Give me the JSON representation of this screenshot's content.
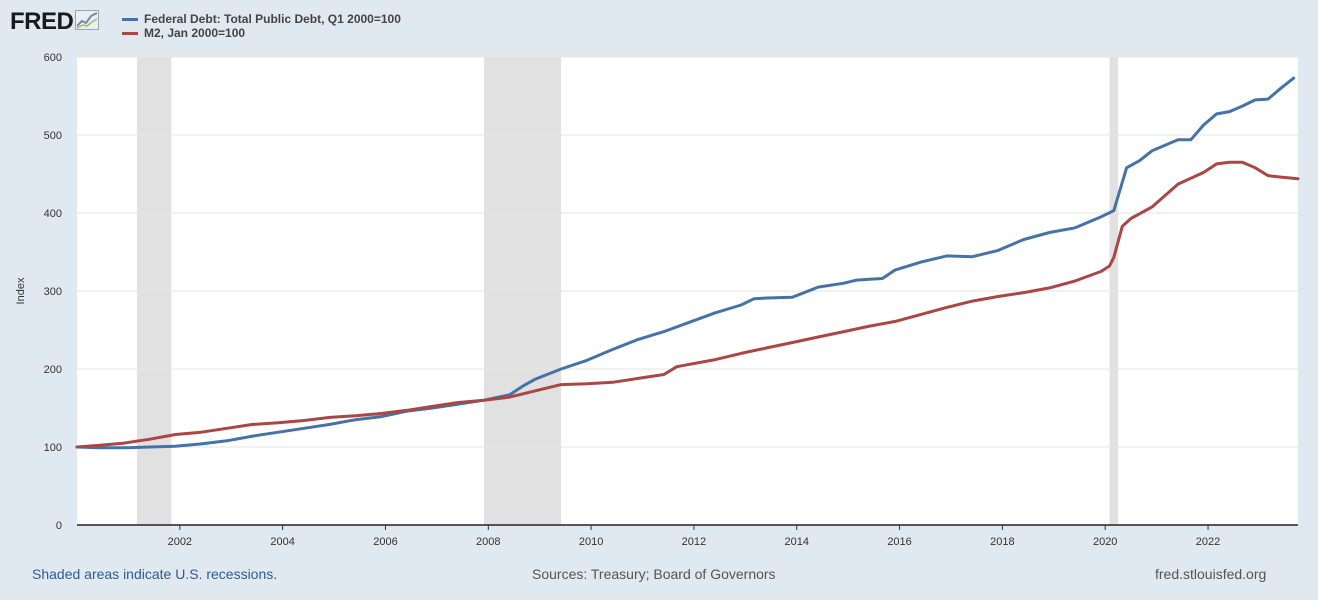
{
  "brand": {
    "logo_text": "FRED",
    "logo_icon": "trend-graph-icon"
  },
  "chart_data": {
    "type": "line",
    "ylabel": "Index",
    "xlabel": "",
    "ylim": [
      0,
      600
    ],
    "xlim": [
      "2000-01-01",
      "2023-10-01"
    ],
    "y_ticks": [
      0,
      100,
      200,
      300,
      400,
      500,
      600
    ],
    "x_ticks": [
      "2002",
      "2004",
      "2006",
      "2008",
      "2010",
      "2012",
      "2014",
      "2016",
      "2018",
      "2020",
      "2022"
    ],
    "grid": "horizontal",
    "legend_position": "top-left",
    "recessions": [
      {
        "start": "2001-03-01",
        "end": "2001-11-01"
      },
      {
        "start": "2007-12-01",
        "end": "2009-06-01"
      },
      {
        "start": "2020-02-01",
        "end": "2020-04-01"
      }
    ],
    "series": [
      {
        "name": "Federal Debt: Total Public Debt, Q1 2000=100",
        "color": "#4572a7",
        "points": [
          [
            "2000-01-01",
            100
          ],
          [
            "2000-06-01",
            99
          ],
          [
            "2000-12-01",
            99
          ],
          [
            "2001-06-01",
            100
          ],
          [
            "2001-12-01",
            101
          ],
          [
            "2002-06-01",
            104
          ],
          [
            "2002-12-01",
            108
          ],
          [
            "2003-06-01",
            114
          ],
          [
            "2003-12-01",
            119
          ],
          [
            "2004-06-01",
            124
          ],
          [
            "2004-12-01",
            129
          ],
          [
            "2005-06-01",
            135
          ],
          [
            "2005-12-01",
            139
          ],
          [
            "2006-06-01",
            146
          ],
          [
            "2006-12-01",
            150
          ],
          [
            "2007-06-01",
            155
          ],
          [
            "2007-12-01",
            160
          ],
          [
            "2008-06-01",
            167
          ],
          [
            "2008-09-01",
            178
          ],
          [
            "2008-12-01",
            187
          ],
          [
            "2009-06-01",
            200
          ],
          [
            "2009-12-01",
            211
          ],
          [
            "2010-06-01",
            225
          ],
          [
            "2010-12-01",
            238
          ],
          [
            "2011-06-01",
            248
          ],
          [
            "2011-12-01",
            260
          ],
          [
            "2012-06-01",
            272
          ],
          [
            "2012-12-01",
            282
          ],
          [
            "2013-03-01",
            290
          ],
          [
            "2013-06-01",
            291
          ],
          [
            "2013-12-01",
            292
          ],
          [
            "2014-06-01",
            305
          ],
          [
            "2014-12-01",
            310
          ],
          [
            "2015-03-01",
            314
          ],
          [
            "2015-06-01",
            315
          ],
          [
            "2015-09-01",
            316
          ],
          [
            "2015-12-01",
            327
          ],
          [
            "2016-06-01",
            337
          ],
          [
            "2016-12-01",
            345
          ],
          [
            "2017-06-01",
            344
          ],
          [
            "2017-12-01",
            352
          ],
          [
            "2018-06-01",
            366
          ],
          [
            "2018-12-01",
            375
          ],
          [
            "2019-06-01",
            381
          ],
          [
            "2019-12-01",
            395
          ],
          [
            "2020-03-01",
            403
          ],
          [
            "2020-06-01",
            458
          ],
          [
            "2020-09-01",
            467
          ],
          [
            "2020-12-01",
            480
          ],
          [
            "2021-06-01",
            494
          ],
          [
            "2021-09-01",
            494
          ],
          [
            "2021-12-01",
            513
          ],
          [
            "2022-03-01",
            527
          ],
          [
            "2022-06-01",
            530
          ],
          [
            "2022-09-01",
            537
          ],
          [
            "2022-12-01",
            545
          ],
          [
            "2023-03-01",
            546
          ],
          [
            "2023-06-01",
            560
          ],
          [
            "2023-09-01",
            573
          ]
        ]
      },
      {
        "name": "M2, Jan 2000=100",
        "color": "#aa4643",
        "points": [
          [
            "2000-01-01",
            100
          ],
          [
            "2000-06-01",
            102
          ],
          [
            "2000-12-01",
            105
          ],
          [
            "2001-06-01",
            110
          ],
          [
            "2001-12-01",
            116
          ],
          [
            "2002-06-01",
            119
          ],
          [
            "2002-12-01",
            124
          ],
          [
            "2003-06-01",
            129
          ],
          [
            "2003-12-01",
            131
          ],
          [
            "2004-06-01",
            134
          ],
          [
            "2004-12-01",
            138
          ],
          [
            "2005-06-01",
            140
          ],
          [
            "2005-12-01",
            143
          ],
          [
            "2006-06-01",
            147
          ],
          [
            "2006-12-01",
            152
          ],
          [
            "2007-06-01",
            157
          ],
          [
            "2007-12-01",
            160
          ],
          [
            "2008-06-01",
            164
          ],
          [
            "2008-12-01",
            172
          ],
          [
            "2009-06-01",
            180
          ],
          [
            "2009-12-01",
            181
          ],
          [
            "2010-06-01",
            183
          ],
          [
            "2010-12-01",
            188
          ],
          [
            "2011-06-01",
            193
          ],
          [
            "2011-09-01",
            203
          ],
          [
            "2011-12-01",
            206
          ],
          [
            "2012-06-01",
            212
          ],
          [
            "2012-12-01",
            220
          ],
          [
            "2013-06-01",
            227
          ],
          [
            "2013-12-01",
            234
          ],
          [
            "2014-06-01",
            241
          ],
          [
            "2014-12-01",
            248
          ],
          [
            "2015-06-01",
            255
          ],
          [
            "2015-12-01",
            261
          ],
          [
            "2016-06-01",
            270
          ],
          [
            "2016-12-01",
            279
          ],
          [
            "2017-06-01",
            287
          ],
          [
            "2017-12-01",
            293
          ],
          [
            "2018-06-01",
            298
          ],
          [
            "2018-12-01",
            304
          ],
          [
            "2019-06-01",
            313
          ],
          [
            "2019-12-01",
            325
          ],
          [
            "2020-02-01",
            332
          ],
          [
            "2020-03-01",
            343
          ],
          [
            "2020-05-01",
            383
          ],
          [
            "2020-07-01",
            393
          ],
          [
            "2020-12-01",
            408
          ],
          [
            "2021-06-01",
            437
          ],
          [
            "2021-12-01",
            452
          ],
          [
            "2022-03-01",
            463
          ],
          [
            "2022-06-01",
            465
          ],
          [
            "2022-09-01",
            465
          ],
          [
            "2022-12-01",
            458
          ],
          [
            "2023-03-01",
            448
          ],
          [
            "2023-06-01",
            446
          ],
          [
            "2023-10-01",
            444
          ]
        ]
      }
    ]
  },
  "footer": {
    "recession_note": "Shaded areas indicate U.S. recessions.",
    "sources": "Sources: Treasury; Board of Governors",
    "site": "fred.stlouisfed.org"
  }
}
